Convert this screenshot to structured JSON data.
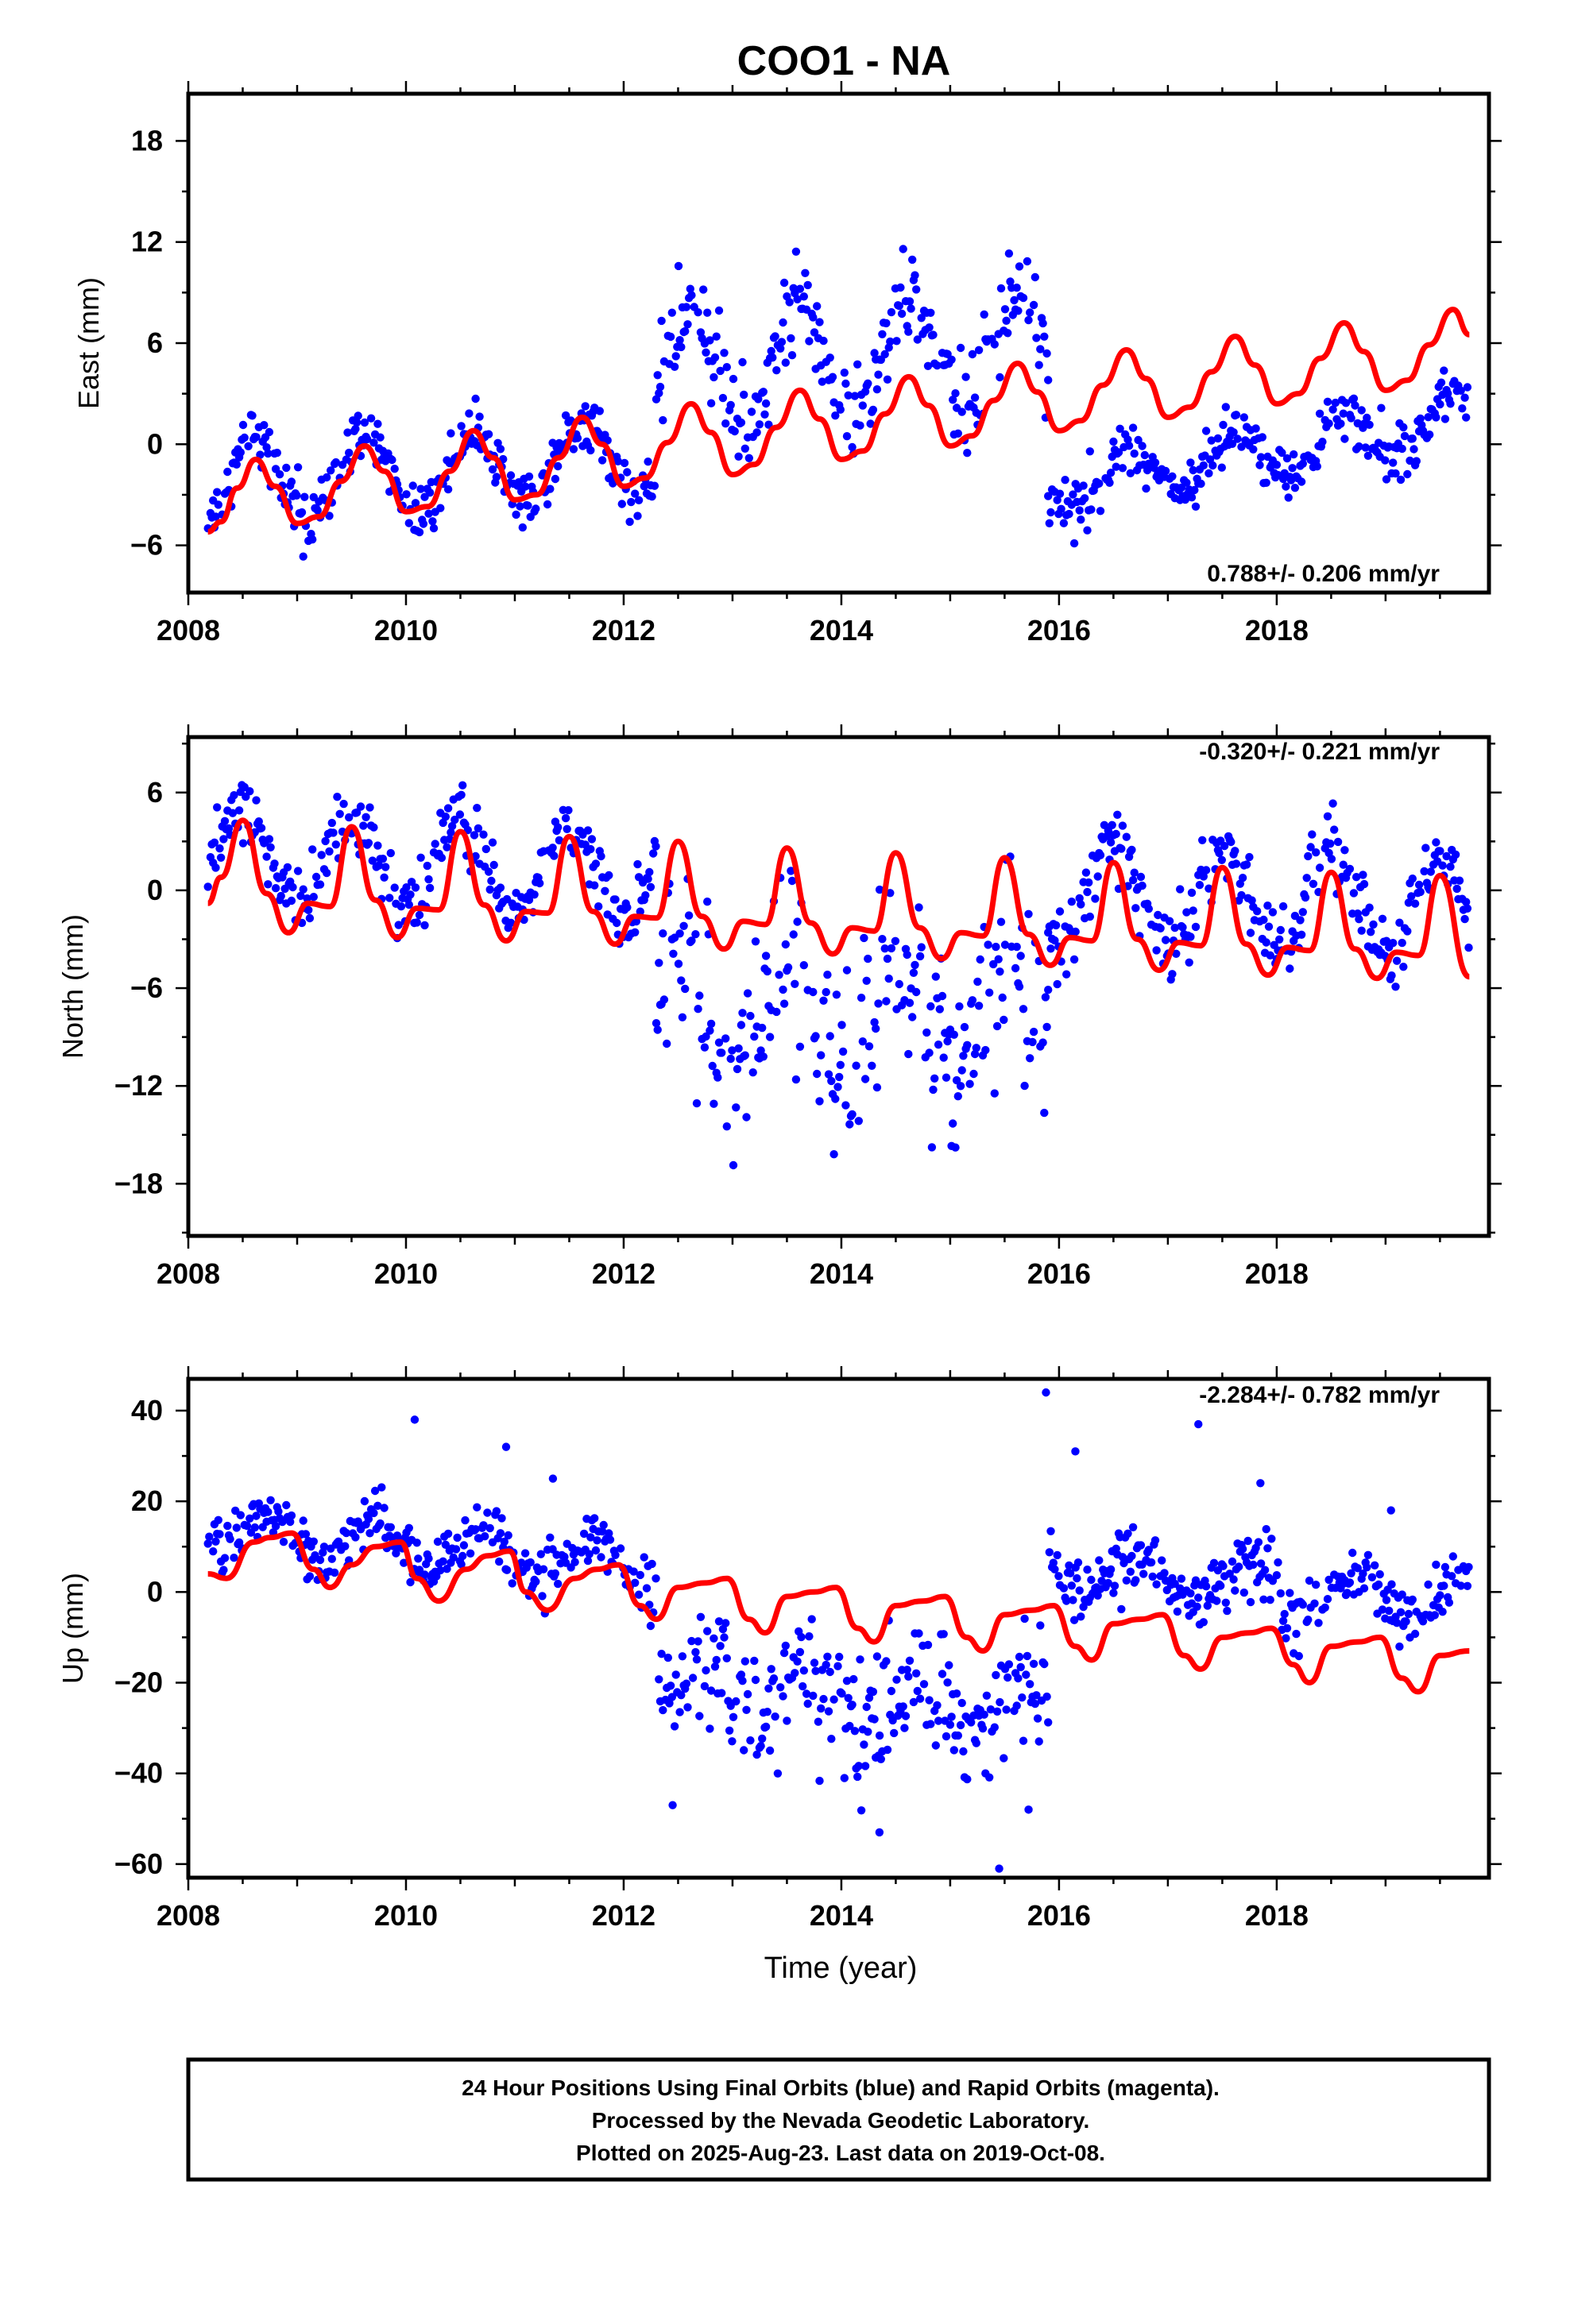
{
  "title": "COO1 - NA",
  "x_label": "Time (year)",
  "footer": {
    "line1": "24 Hour Positions Using Final Orbits (blue) and Rapid Orbits (magenta).",
    "line2": "Processed by the Nevada Geodetic Laboratory.",
    "line3": "Plotted on 2025-Aug-23. Last data on 2019-Oct-08."
  },
  "colors": {
    "data": "#0000ff",
    "model": "#ff0000",
    "frame": "#000000"
  },
  "chart_data": [
    {
      "type": "scatter",
      "panel": "East",
      "ylabel": "East (mm)",
      "xlim": [
        2008.0,
        2019.95
      ],
      "ylim": [
        -8.8,
        20.8
      ],
      "yticks": [
        -6,
        0,
        6,
        12,
        18
      ],
      "xticks": [
        2008,
        2010,
        2012,
        2014,
        2016,
        2018
      ],
      "rate_label": "0.788+/- 0.206 mm/yr",
      "rate_position": "bottom-right",
      "data_span": [
        2008.18,
        2019.77
      ],
      "segments": [
        {
          "from": 2008.18,
          "to": 2012.3,
          "offset": -2.3,
          "trend": 0.4,
          "amplitude": 2.4,
          "phase": 0.62,
          "scatter": 1.3
        },
        {
          "from": 2012.3,
          "to": 2015.9,
          "offset": 4.5,
          "trend": 0.3,
          "amplitude": 3.2,
          "phase": 0.62,
          "scatter": 2.2
        },
        {
          "from": 2015.9,
          "to": 2019.77,
          "offset": -2.5,
          "trend": 1.05,
          "amplitude": 1.6,
          "phase": 0.62,
          "scatter": 1.2
        }
      ],
      "model": {
        "name": "model fit",
        "x": [
          2008.18,
          2008.3,
          2008.45,
          2008.62,
          2008.8,
          2009.0,
          2009.2,
          2009.4,
          2009.62,
          2009.8,
          2010.0,
          2010.2,
          2010.4,
          2010.62,
          2010.8,
          2011.0,
          2011.2,
          2011.4,
          2011.62,
          2011.8,
          2012.0,
          2012.2,
          2012.4,
          2012.62,
          2012.8,
          2013.0,
          2013.2,
          2013.4,
          2013.62,
          2013.8,
          2014.0,
          2014.2,
          2014.4,
          2014.62,
          2014.8,
          2015.0,
          2015.2,
          2015.4,
          2015.62,
          2015.8,
          2016.0,
          2016.2,
          2016.4,
          2016.62,
          2016.8,
          2017.0,
          2017.2,
          2017.4,
          2017.62,
          2017.8,
          2018.0,
          2018.2,
          2018.4,
          2018.62,
          2018.8,
          2019.0,
          2019.2,
          2019.4,
          2019.62,
          2019.77
        ],
        "y": [
          -5.2,
          -4.6,
          -2.6,
          -0.9,
          -2.5,
          -4.7,
          -4.3,
          -2.2,
          -0.1,
          -1.6,
          -4.0,
          -3.7,
          -1.6,
          0.8,
          -0.8,
          -3.3,
          -3.0,
          -0.8,
          1.6,
          0.0,
          -2.5,
          -2.0,
          0.1,
          2.4,
          0.7,
          -1.8,
          -1.2,
          1.0,
          3.2,
          1.5,
          -0.9,
          -0.4,
          1.8,
          4.0,
          2.3,
          -0.1,
          0.5,
          2.6,
          4.8,
          3.1,
          0.8,
          1.4,
          3.5,
          5.6,
          3.9,
          1.6,
          2.2,
          4.3,
          6.4,
          4.7,
          2.4,
          3.0,
          5.1,
          7.2,
          5.5,
          3.2,
          3.8,
          5.9,
          8.0,
          6.5
        ]
      }
    },
    {
      "type": "scatter",
      "panel": "North",
      "ylabel": "North (mm)",
      "xlim": [
        2008.0,
        2019.95
      ],
      "ylim": [
        -21.2,
        9.4
      ],
      "yticks": [
        -18,
        -12,
        -6,
        0,
        6
      ],
      "xticks": [
        2008,
        2010,
        2012,
        2014,
        2016,
        2018
      ],
      "rate_label": "-0.320+/- 0.221 mm/yr",
      "rate_position": "top-right",
      "data_span": [
        2008.18,
        2019.77
      ],
      "segments": [
        {
          "from": 2008.18,
          "to": 2012.3,
          "offset": 2.2,
          "trend": -0.3,
          "amplitude": 2.8,
          "phase": 0.5,
          "scatter": 1.4
        },
        {
          "from": 2012.3,
          "to": 2015.9,
          "offset": -7.5,
          "trend": 0.2,
          "amplitude": 3.5,
          "phase": 0.5,
          "scatter": 4.2
        },
        {
          "from": 2015.9,
          "to": 2019.77,
          "offset": 0.0,
          "trend": -0.3,
          "amplitude": 3.2,
          "phase": 0.5,
          "scatter": 1.5
        }
      ],
      "model": {
        "name": "model fit",
        "x": [
          2008.18,
          2008.3,
          2008.5,
          2008.72,
          2008.92,
          2009.1,
          2009.3,
          2009.5,
          2009.72,
          2009.92,
          2010.1,
          2010.3,
          2010.5,
          2010.72,
          2010.92,
          2011.1,
          2011.3,
          2011.5,
          2011.72,
          2011.92,
          2012.1,
          2012.3,
          2012.5,
          2012.72,
          2012.92,
          2013.1,
          2013.3,
          2013.5,
          2013.72,
          2013.92,
          2014.1,
          2014.3,
          2014.5,
          2014.72,
          2014.92,
          2015.1,
          2015.3,
          2015.5,
          2015.72,
          2015.92,
          2016.1,
          2016.3,
          2016.5,
          2016.72,
          2016.92,
          2017.1,
          2017.3,
          2017.5,
          2017.72,
          2017.92,
          2018.1,
          2018.3,
          2018.5,
          2018.72,
          2018.92,
          2019.1,
          2019.3,
          2019.5,
          2019.77
        ],
        "y": [
          -0.8,
          0.8,
          4.3,
          -0.2,
          -2.6,
          -0.8,
          -1.0,
          3.9,
          -0.6,
          -2.9,
          -1.1,
          -1.2,
          3.6,
          -0.9,
          -3.1,
          -1.3,
          -1.4,
          3.3,
          -1.3,
          -3.3,
          -1.6,
          -1.7,
          3.0,
          -1.6,
          -3.6,
          -1.9,
          -2.1,
          2.6,
          -2.0,
          -3.9,
          -2.3,
          -2.5,
          2.3,
          -2.3,
          -4.2,
          -2.6,
          -2.8,
          2.0,
          -2.7,
          -4.6,
          -2.9,
          -3.1,
          1.7,
          -3.0,
          -4.9,
          -3.2,
          -3.4,
          1.4,
          -3.3,
          -5.2,
          -3.5,
          -3.7,
          1.1,
          -3.6,
          -5.4,
          -3.8,
          -4.0,
          0.9,
          -5.3
        ]
      }
    },
    {
      "type": "scatter",
      "panel": "Up",
      "ylabel": "Up (mm)",
      "xlim": [
        2008.0,
        2019.95
      ],
      "ylim": [
        -63,
        47
      ],
      "yticks": [
        -60,
        -40,
        -20,
        0,
        20,
        40
      ],
      "xticks": [
        2008,
        2010,
        2012,
        2014,
        2016,
        2018
      ],
      "rate_label": "-2.284+/- 0.782 mm/yr",
      "rate_position": "top-right",
      "data_span": [
        2008.18,
        2019.77
      ],
      "segments": [
        {
          "from": 2008.18,
          "to": 2012.3,
          "offset": 14.0,
          "trend": -2.0,
          "amplitude": 4.5,
          "phase": 0.72,
          "scatter": 4.5
        },
        {
          "from": 2012.3,
          "to": 2015.9,
          "offset": -22.0,
          "trend": -1.0,
          "amplitude": 6.0,
          "phase": 0.72,
          "scatter": 10.0
        },
        {
          "from": 2015.9,
          "to": 2019.77,
          "offset": 6.0,
          "trend": -2.3,
          "amplitude": 5.0,
          "phase": 0.72,
          "scatter": 5.0
        }
      ],
      "outliers": [
        {
          "x": 2010.08,
          "y": 38
        },
        {
          "x": 2010.92,
          "y": 32
        },
        {
          "x": 2011.35,
          "y": 25
        },
        {
          "x": 2015.88,
          "y": 44
        },
        {
          "x": 2016.15,
          "y": 31
        },
        {
          "x": 2017.28,
          "y": 37
        },
        {
          "x": 2017.85,
          "y": 24
        },
        {
          "x": 2019.05,
          "y": 18
        },
        {
          "x": 2015.45,
          "y": -61
        },
        {
          "x": 2012.45,
          "y": -47
        },
        {
          "x": 2014.35,
          "y": -53
        },
        {
          "x": 2015.72,
          "y": -48
        }
      ],
      "model": {
        "name": "model fit",
        "x": [
          2008.18,
          2008.35,
          2008.6,
          2008.75,
          2008.95,
          2009.15,
          2009.3,
          2009.5,
          2009.72,
          2009.95,
          2010.1,
          2010.3,
          2010.55,
          2010.75,
          2010.95,
          2011.1,
          2011.3,
          2011.55,
          2011.75,
          2011.95,
          2012.15,
          2012.3,
          2012.5,
          2012.75,
          2012.95,
          2013.15,
          2013.3,
          2013.5,
          2013.75,
          2013.95,
          2014.15,
          2014.3,
          2014.5,
          2014.75,
          2014.95,
          2015.15,
          2015.3,
          2015.5,
          2015.75,
          2015.95,
          2016.15,
          2016.3,
          2016.5,
          2016.75,
          2016.95,
          2017.15,
          2017.3,
          2017.5,
          2017.75,
          2017.95,
          2018.15,
          2018.3,
          2018.5,
          2018.75,
          2018.95,
          2019.15,
          2019.3,
          2019.5,
          2019.77
        ],
        "y": [
          4,
          3,
          11,
          12,
          13,
          5,
          1,
          6,
          10,
          11,
          3,
          -2,
          5,
          8,
          9,
          0,
          -4,
          3,
          5,
          6,
          -3,
          -6,
          1,
          2,
          3,
          -6,
          -9,
          -1,
          0,
          1,
          -8,
          -11,
          -3,
          -2,
          -1,
          -10,
          -13,
          -5,
          -4,
          -3,
          -12,
          -15,
          -7,
          -6,
          -5,
          -14,
          -17,
          -10,
          -9,
          -8,
          -16,
          -20,
          -12,
          -11,
          -10,
          -19,
          -22,
          -14,
          -13
        ]
      }
    }
  ]
}
